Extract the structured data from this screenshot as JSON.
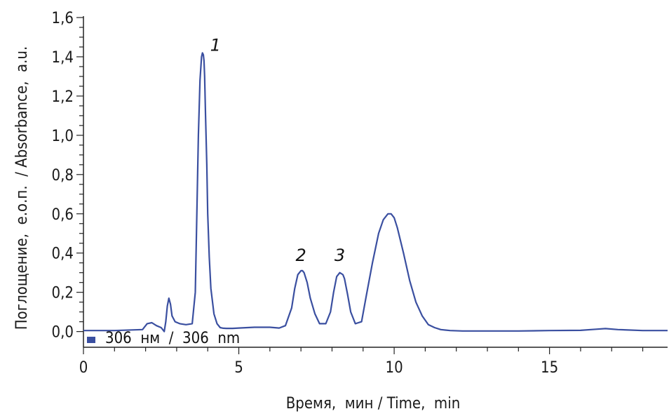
{
  "chart_data": {
    "type": "line",
    "xlabel": "Время,  мин / Time,  min",
    "ylabel": "Поглощение,  е.о.п.  / Absorbance,  a.u.",
    "xlim": [
      0,
      18.8
    ],
    "ylim": [
      -0.08,
      1.6
    ],
    "x_ticks": [
      0,
      5,
      10,
      15
    ],
    "x_tick_labels": [
      "0",
      "5",
      "10",
      "15"
    ],
    "y_ticks": [
      0.0,
      0.2,
      0.4,
      0.6,
      0.8,
      1.0,
      1.2,
      1.4,
      1.6
    ],
    "y_tick_labels": [
      "0,0",
      "0,2",
      "0,4",
      "0,6",
      "0,8",
      "1,0",
      "1,2",
      "1,4",
      "1,6"
    ],
    "legend": {
      "label": "306  нм  /  306  nm",
      "position": "bottom-left"
    },
    "series": [
      {
        "name": "306  нм  /  306  nm",
        "color": "#3a4fa0",
        "x": [
          0,
          1.0,
          1.9,
          2.05,
          2.2,
          2.35,
          2.5,
          2.6,
          2.65,
          2.7,
          2.75,
          2.8,
          2.85,
          2.95,
          3.1,
          3.3,
          3.5,
          3.6,
          3.65,
          3.7,
          3.75,
          3.8,
          3.83,
          3.86,
          3.88,
          3.9,
          3.93,
          3.97,
          4.0,
          4.05,
          4.1,
          4.2,
          4.3,
          4.4,
          4.5,
          4.6,
          4.8,
          5.0,
          5.5,
          6.0,
          6.3,
          6.5,
          6.7,
          6.8,
          6.9,
          7.0,
          7.05,
          7.1,
          7.2,
          7.3,
          7.45,
          7.6,
          7.8,
          7.95,
          8.05,
          8.15,
          8.25,
          8.35,
          8.4,
          8.5,
          8.6,
          8.75,
          8.95,
          9.1,
          9.3,
          9.5,
          9.65,
          9.8,
          9.9,
          10.0,
          10.1,
          10.3,
          10.5,
          10.7,
          10.9,
          11.1,
          11.3,
          11.5,
          11.8,
          12.2,
          13.0,
          14.0,
          15.0,
          16.0,
          16.5,
          16.8,
          17.2,
          18.0,
          18.8
        ],
        "y": [
          0.005,
          0.005,
          0.01,
          0.04,
          0.045,
          0.03,
          0.02,
          0.0,
          0.05,
          0.13,
          0.17,
          0.14,
          0.08,
          0.05,
          0.04,
          0.035,
          0.04,
          0.2,
          0.6,
          1.0,
          1.28,
          1.4,
          1.42,
          1.41,
          1.38,
          1.3,
          1.1,
          0.85,
          0.6,
          0.38,
          0.22,
          0.09,
          0.04,
          0.02,
          0.017,
          0.016,
          0.016,
          0.018,
          0.022,
          0.022,
          0.018,
          0.03,
          0.12,
          0.22,
          0.29,
          0.31,
          0.31,
          0.3,
          0.25,
          0.17,
          0.09,
          0.04,
          0.04,
          0.1,
          0.2,
          0.28,
          0.3,
          0.29,
          0.27,
          0.19,
          0.1,
          0.04,
          0.05,
          0.18,
          0.35,
          0.5,
          0.57,
          0.6,
          0.6,
          0.58,
          0.53,
          0.4,
          0.26,
          0.15,
          0.08,
          0.035,
          0.02,
          0.01,
          0.005,
          0.003,
          0.003,
          0.003,
          0.005,
          0.006,
          0.012,
          0.015,
          0.01,
          0.005,
          0.005
        ]
      }
    ],
    "annotations": [
      {
        "text": "1",
        "x": 4.25,
        "y": 1.43
      },
      {
        "text": "2",
        "x": 7.0,
        "y": 0.36
      },
      {
        "text": "3",
        "x": 8.25,
        "y": 0.36
      }
    ]
  }
}
